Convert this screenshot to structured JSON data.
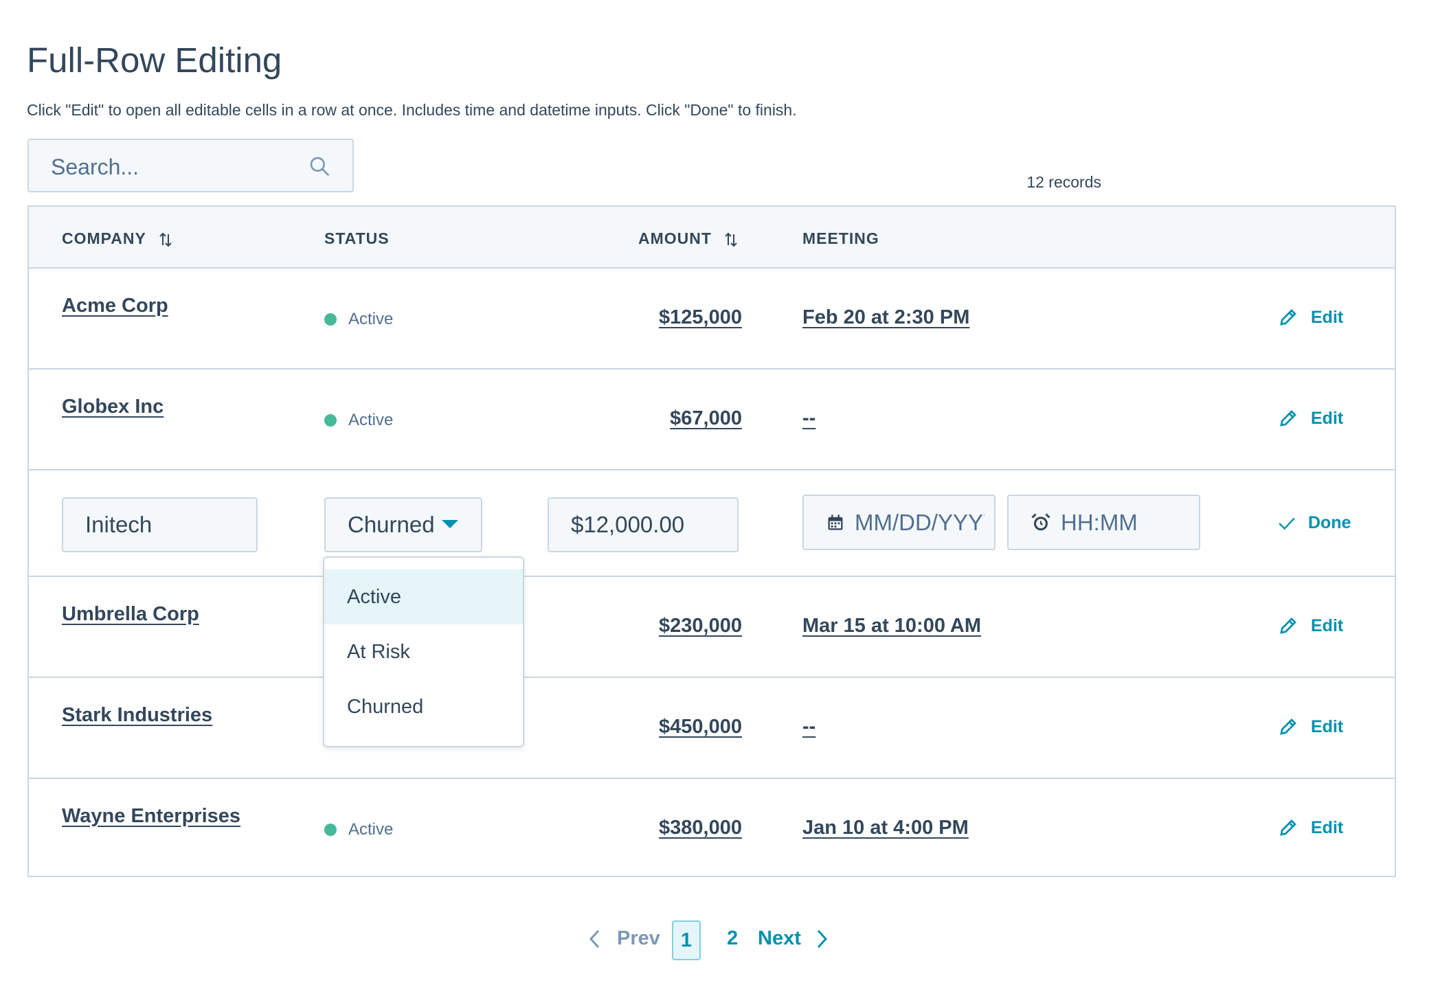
{
  "page": {
    "title": "Full-Row Editing",
    "subtitle": "Click \"Edit\" to open all editable cells in a row at once. Includes time and datetime inputs. Click \"Done\" to finish."
  },
  "search": {
    "placeholder": "Search..."
  },
  "records_count": "12 records",
  "table": {
    "headers": {
      "company": "COMPANY",
      "status": "STATUS",
      "amount": "AMOUNT",
      "meeting": "MEETING"
    },
    "rows": [
      {
        "company": "Acme Corp",
        "status": "Active",
        "amount": "$125,000",
        "meeting": "Feb 20 at 2:30 PM",
        "action": "Edit"
      },
      {
        "company": "Globex Inc",
        "status": "Active",
        "amount": "$67,000",
        "meeting": "--",
        "action": "Edit"
      },
      {
        "company": "Initech",
        "status": "Churned",
        "amount": "$12,000.00",
        "date_placeholder": "MM/DD/YYYY",
        "time_placeholder": "HH:MM",
        "action": "Done"
      },
      {
        "company": "Umbrella Corp",
        "amount": "$230,000",
        "meeting": "Mar 15 at 10:00 AM",
        "action": "Edit"
      },
      {
        "company": "Stark Industries",
        "amount": "$450,000",
        "meeting": "--",
        "action": "Edit"
      },
      {
        "company": "Wayne Enterprises",
        "status": "Active",
        "amount": "$380,000",
        "meeting": "Jan 10 at 4:00 PM",
        "action": "Edit"
      }
    ]
  },
  "status_dropdown": {
    "options": [
      "Active",
      "At Risk",
      "Churned"
    ],
    "highlighted": "Active"
  },
  "pagination": {
    "prev": "Prev",
    "pages": [
      "1",
      "2"
    ],
    "current": "1",
    "next": "Next"
  },
  "colors": {
    "text": "#33475b",
    "accent": "#0091ae",
    "status_active": "#48b89b",
    "border": "#cbd6e2",
    "header_bg": "#f5f8fa"
  }
}
